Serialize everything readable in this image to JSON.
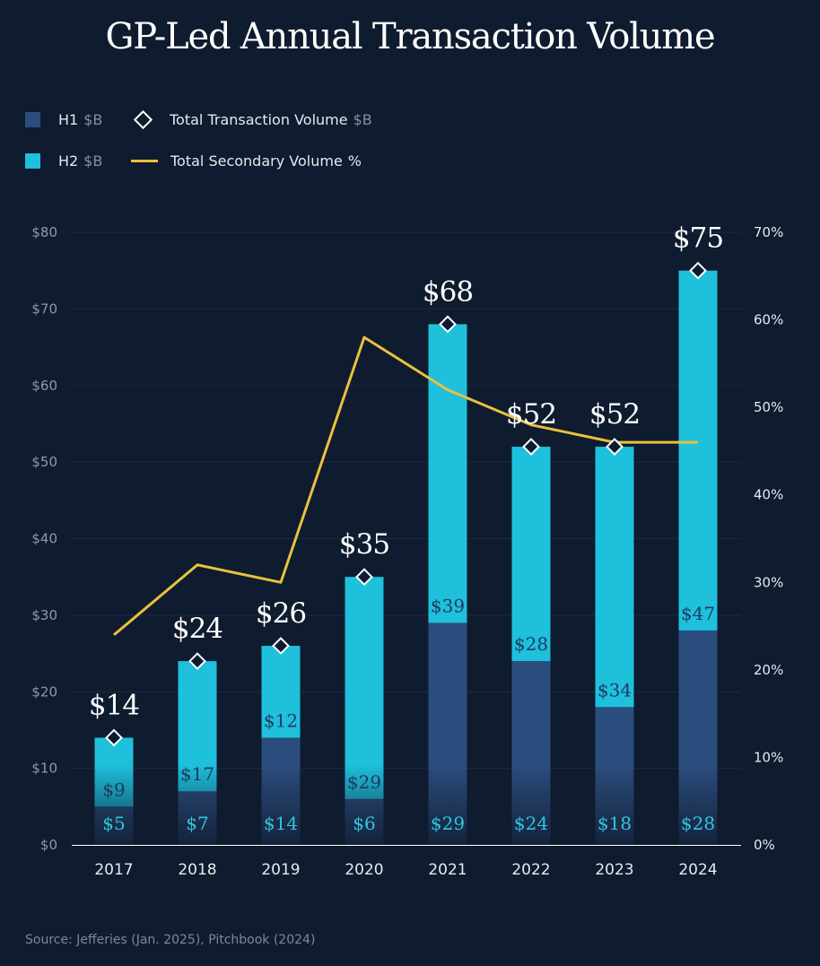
{
  "title": "GP-Led Annual Transaction Volume",
  "legend": {
    "h1": {
      "label": "H1",
      "unit": "$B",
      "color": "#2b4d7e"
    },
    "total": {
      "label": "Total Transaction Volume",
      "unit": "$B"
    },
    "h2": {
      "label": "H2",
      "unit": "$B",
      "color": "#1ec0dc"
    },
    "secondary": {
      "label": "Total Secondary Volume",
      "unit": "%",
      "color": "#e8c13e"
    }
  },
  "source": "Source: Jefferies (Jan. 2025), Pitchbook (2024)",
  "chart_data": {
    "type": "bar",
    "stacked": true,
    "categories": [
      "2017",
      "2018",
      "2019",
      "2020",
      "2021",
      "2022",
      "2023",
      "2024"
    ],
    "series": [
      {
        "name": "H1",
        "unit": "$B",
        "values": [
          5,
          7,
          14,
          6,
          29,
          24,
          18,
          28
        ],
        "labels": [
          "$5",
          "$7",
          "$14",
          "$6",
          "$29",
          "$24",
          "$18",
          "$28"
        ]
      },
      {
        "name": "H2",
        "unit": "$B",
        "values": [
          9,
          17,
          12,
          29,
          39,
          28,
          34,
          47
        ],
        "labels": [
          "$9",
          "$17",
          "$12",
          "$29",
          "$39",
          "$28",
          "$34",
          "$47"
        ]
      },
      {
        "name": "Total Transaction Volume",
        "unit": "$B",
        "values": [
          14,
          24,
          26,
          35,
          68,
          52,
          52,
          75
        ],
        "labels": [
          "$14",
          "$24",
          "$26",
          "$35",
          "$68",
          "$52",
          "$52",
          "$75"
        ]
      },
      {
        "name": "Total Secondary Volume",
        "unit": "%",
        "axis": "right",
        "type": "line",
        "values": [
          24,
          32,
          30,
          58,
          52,
          48,
          46,
          46
        ]
      }
    ],
    "ylim": [
      0,
      80
    ],
    "yticks": [
      "$0",
      "$10",
      "$20",
      "$30",
      "$40",
      "$50",
      "$60",
      "$70",
      "$80"
    ],
    "y2lim": [
      0,
      70
    ],
    "y2ticks": [
      "0%",
      "10%",
      "20%",
      "30%",
      "40%",
      "50%",
      "60%",
      "70%"
    ],
    "grid": true,
    "legend_position": "top-left"
  }
}
